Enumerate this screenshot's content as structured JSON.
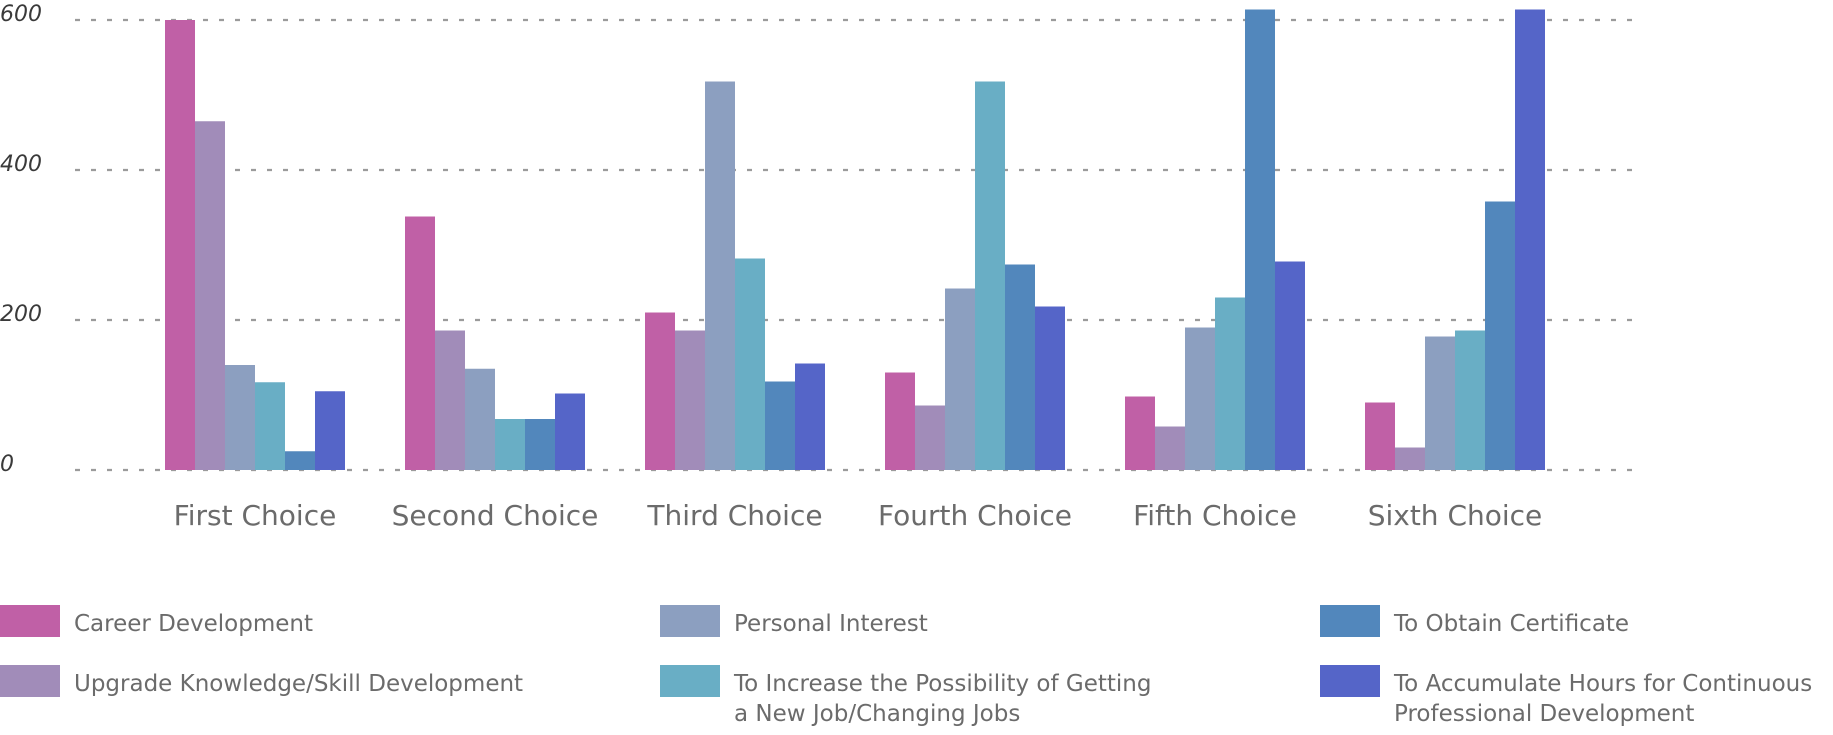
{
  "chart_data": {
    "type": "bar",
    "title": "",
    "xlabel": "",
    "ylabel": "",
    "ylim": [
      0,
      600
    ],
    "yticks": [
      0,
      200,
      400,
      600
    ],
    "grid": true,
    "legend_position": "bottom",
    "categories": [
      "First Choice",
      "Second Choice",
      "Third Choice",
      "Fourth Choice",
      "Fifth Choice",
      "Sixth Choice"
    ],
    "series": [
      {
        "name": "Career Development",
        "color": "#c060a6",
        "values": [
          600,
          338,
          210,
          130,
          98,
          90
        ]
      },
      {
        "name": "Upgrade Knowledge/Skill Development",
        "color": "#a18cb9",
        "values": [
          465,
          186,
          186,
          86,
          58,
          30
        ]
      },
      {
        "name": "Personal Interest",
        "color": "#8c9fc0",
        "values": [
          140,
          135,
          518,
          242,
          190,
          178
        ]
      },
      {
        "name": "To Increase the Possibility of Getting\na New Job/Changing Jobs",
        "color": "#69aec5",
        "values": [
          117,
          68,
          282,
          518,
          230,
          186
        ]
      },
      {
        "name": "To Obtain Certificate",
        "color": "#5287bc",
        "values": [
          25,
          68,
          118,
          274,
          614,
          358
        ]
      },
      {
        "name": "To Accumulate Hours for Continuous\nProfessional Development",
        "color": "#5565c8",
        "values": [
          105,
          102,
          142,
          218,
          278,
          614
        ]
      }
    ]
  }
}
